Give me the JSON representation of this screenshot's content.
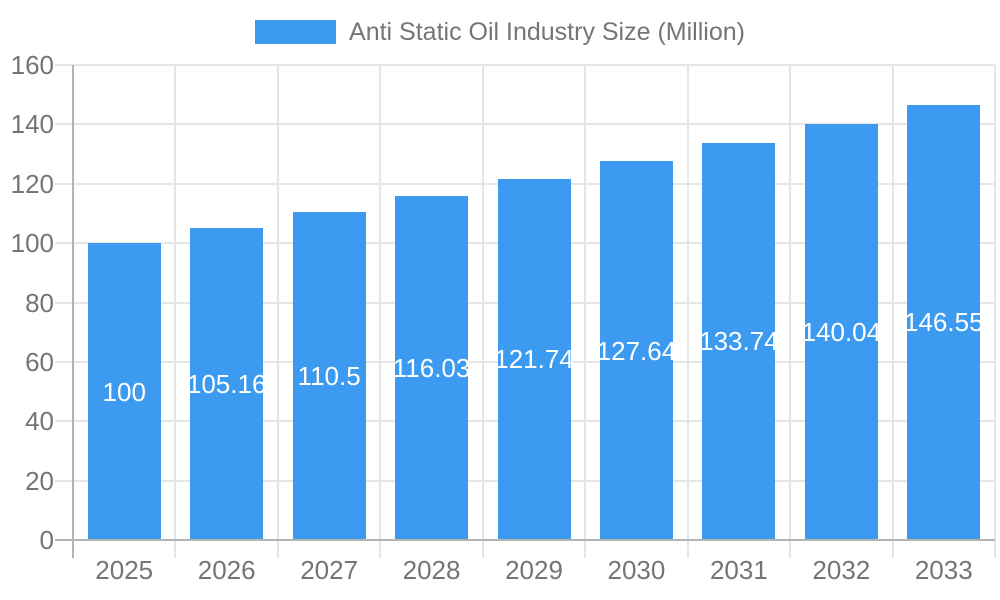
{
  "chart_data": {
    "type": "bar",
    "title": "Anti Static Oil Industry Size (Million)",
    "legend": {
      "position": "top",
      "entries": [
        "Anti Static Oil Industry Size (Million)"
      ]
    },
    "categories": [
      "2025",
      "2026",
      "2027",
      "2028",
      "2029",
      "2030",
      "2031",
      "2032",
      "2033"
    ],
    "series": [
      {
        "name": "Anti Static Oil Industry Size (Million)",
        "values": [
          100,
          105.16,
          110.5,
          116.03,
          121.74,
          127.64,
          133.74,
          140.04,
          146.55
        ],
        "value_labels": [
          "100",
          "105.16",
          "110.5",
          "116.03",
          "121.74",
          "127.64",
          "133.74",
          "140.04",
          "146.55"
        ]
      }
    ],
    "xlabel": "",
    "ylabel": "",
    "ylim": [
      0,
      160
    ],
    "y_ticks": [
      "0",
      "20",
      "40",
      "60",
      "80",
      "100",
      "120",
      "140",
      "160"
    ],
    "grid": true,
    "colors": {
      "bar": "#3C9BF0",
      "bar_label_text": "#ffffff",
      "axis_label_text": "#757575",
      "legend_text": "#757575",
      "gridline": "#e6e6e6",
      "axis_line": "#b4b4b4",
      "background": "#ffffff"
    }
  }
}
